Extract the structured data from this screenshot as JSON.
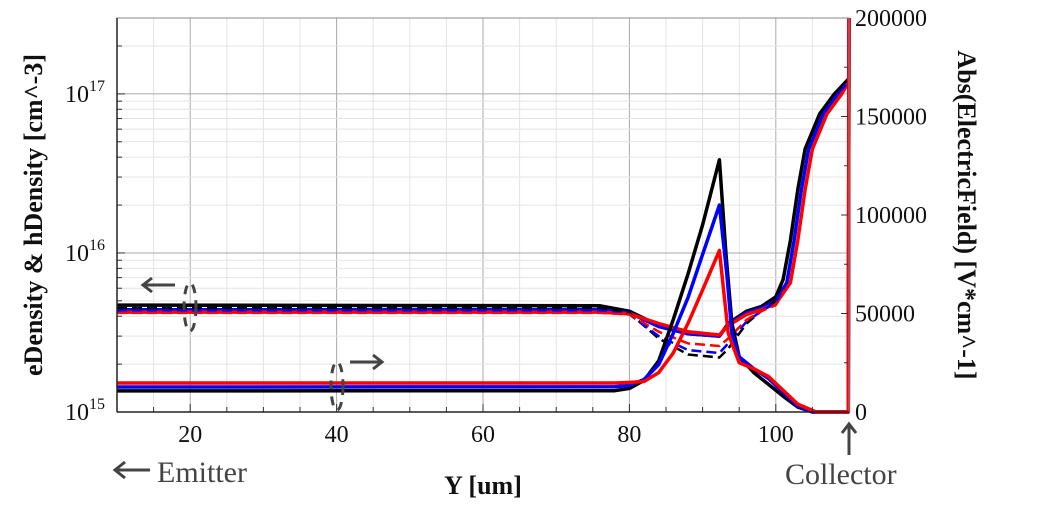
{
  "chart_data": {
    "type": "line",
    "xlabel": "Y [um]",
    "ylabel_left": "eDensity & hDensity [cm^-3]",
    "ylabel_right": "Abs(ElectricField) [V*cm^-1]",
    "xlim": [
      10,
      110
    ],
    "ylim_left": [
      1000000000000000.0,
      3e+17
    ],
    "left_scale": "log",
    "ylim_right": [
      0,
      200000
    ],
    "grid": true,
    "x_ticks": [
      "20",
      "40",
      "60",
      "80",
      "100"
    ],
    "left_ticks": [
      {
        "base": "10",
        "exp": "15",
        "value": 1000000000000000.0
      },
      {
        "base": "10",
        "exp": "16",
        "value": 1e+16
      },
      {
        "base": "10",
        "exp": "17",
        "value": 1e+17
      }
    ],
    "right_ticks": [
      "0",
      "50000",
      "100000",
      "150000",
      "200000"
    ],
    "colors": {
      "black": "#000000",
      "blue": "#0000ff",
      "red": "#ff0000"
    },
    "series": [
      {
        "axis": "left",
        "style": "solid",
        "color": "#000000",
        "points": [
          [
            10,
            4700000000000000.0
          ],
          [
            76,
            4650000000000000.0
          ],
          [
            80,
            4300000000000000.0
          ],
          [
            84,
            3500000000000000.0
          ],
          [
            88,
            3100000000000000.0
          ],
          [
            92.3,
            3000000000000000.0
          ],
          [
            93.5,
            3600000000000000.0
          ],
          [
            96,
            4300000000000000.0
          ],
          [
            98,
            4600000000000000.0
          ],
          [
            100,
            5300000000000000.0
          ],
          [
            101,
            6800000000000000.0
          ],
          [
            102,
            1.2e+16
          ],
          [
            103,
            2.5e+16
          ],
          [
            104,
            4.5e+16
          ],
          [
            106,
            7.5e+16
          ],
          [
            108,
            1e+17
          ],
          [
            110,
            1.25e+17
          ]
        ]
      },
      {
        "axis": "left",
        "style": "solid",
        "color": "#0000ff",
        "points": [
          [
            10,
            4400000000000000.0
          ],
          [
            76,
            4400000000000000.0
          ],
          [
            80,
            4200000000000000.0
          ],
          [
            84,
            3450000000000000.0
          ],
          [
            88,
            3100000000000000.0
          ],
          [
            92.3,
            3000000000000000.0
          ],
          [
            93.5,
            3550000000000000.0
          ],
          [
            96,
            4200000000000000.0
          ],
          [
            98,
            4500000000000000.0
          ],
          [
            100,
            5000000000000000.0
          ],
          [
            101.5,
            6500000000000000.0
          ],
          [
            102.5,
            1.2e+16
          ],
          [
            103.5,
            2.5e+16
          ],
          [
            104.5,
            4.5e+16
          ],
          [
            106.5,
            7.5e+16
          ],
          [
            108.5,
            1e+17
          ],
          [
            110,
            1.2e+17
          ]
        ]
      },
      {
        "axis": "left",
        "style": "solid",
        "color": "#ff0000",
        "points": [
          [
            10,
            4250000000000000.0
          ],
          [
            76,
            4250000000000000.0
          ],
          [
            80,
            4150000000000000.0
          ],
          [
            84,
            3600000000000000.0
          ],
          [
            88,
            3200000000000000.0
          ],
          [
            92.3,
            3050000000000000.0
          ],
          [
            93.5,
            3500000000000000.0
          ],
          [
            96,
            4100000000000000.0
          ],
          [
            98,
            4400000000000000.0
          ],
          [
            100,
            4800000000000000.0
          ],
          [
            102,
            6500000000000000.0
          ],
          [
            103,
            1.2e+16
          ],
          [
            104,
            2.5e+16
          ],
          [
            105,
            4.5e+16
          ],
          [
            107,
            7.5e+16
          ],
          [
            109,
            1e+17
          ],
          [
            110,
            1.2e+17
          ]
        ]
      },
      {
        "axis": "left",
        "style": "dashed",
        "color": "#000000",
        "points": [
          [
            10,
            4500000000000000.0
          ],
          [
            76,
            4500000000000000.0
          ],
          [
            80,
            4200000000000000.0
          ],
          [
            84,
            2900000000000000.0
          ],
          [
            88,
            2300000000000000.0
          ],
          [
            92.3,
            2200000000000000.0
          ],
          [
            93.5,
            2500000000000000.0
          ],
          [
            96,
            3600000000000000.0
          ],
          [
            98,
            4300000000000000.0
          ],
          [
            100,
            5000000000000000.0
          ],
          [
            101,
            6800000000000000.0
          ],
          [
            102,
            1.2e+16
          ],
          [
            103,
            2.5e+16
          ],
          [
            104,
            4.5e+16
          ],
          [
            106,
            7.5e+16
          ],
          [
            108,
            1e+17
          ],
          [
            110,
            1.25e+17
          ]
        ]
      },
      {
        "axis": "left",
        "style": "dashed",
        "color": "#0000ff",
        "points": [
          [
            10,
            4350000000000000.0
          ],
          [
            76,
            4350000000000000.0
          ],
          [
            80,
            4100000000000000.0
          ],
          [
            84,
            3000000000000000.0
          ],
          [
            88,
            2450000000000000.0
          ],
          [
            92.3,
            2350000000000000.0
          ],
          [
            93.5,
            2700000000000000.0
          ],
          [
            96,
            3700000000000000.0
          ],
          [
            98,
            4300000000000000.0
          ],
          [
            100,
            4900000000000000.0
          ],
          [
            101.5,
            6500000000000000.0
          ],
          [
            102.5,
            1.2e+16
          ],
          [
            103.5,
            2.5e+16
          ],
          [
            104.5,
            4.5e+16
          ],
          [
            106.5,
            7.5e+16
          ],
          [
            108.5,
            1e+17
          ],
          [
            110,
            1.2e+17
          ]
        ]
      },
      {
        "axis": "left",
        "style": "dashed",
        "color": "#ff0000",
        "points": [
          [
            10,
            4200000000000000.0
          ],
          [
            76,
            4200000000000000.0
          ],
          [
            80,
            4100000000000000.0
          ],
          [
            84,
            3200000000000000.0
          ],
          [
            88,
            2700000000000000.0
          ],
          [
            92.3,
            2600000000000000.0
          ],
          [
            93.5,
            2900000000000000.0
          ],
          [
            96,
            3800000000000000.0
          ],
          [
            98,
            4300000000000000.0
          ],
          [
            100,
            4700000000000000.0
          ],
          [
            102,
            6500000000000000.0
          ],
          [
            103,
            1.2e+16
          ],
          [
            104,
            2.5e+16
          ],
          [
            105,
            4.5e+16
          ],
          [
            107,
            7.5e+16
          ],
          [
            109,
            1e+17
          ],
          [
            110,
            1.2e+17
          ]
        ]
      },
      {
        "axis": "right",
        "style": "solid",
        "color": "#000000",
        "points": [
          [
            10,
            10700
          ],
          [
            78,
            10800
          ],
          [
            80,
            12000
          ],
          [
            82,
            16000
          ],
          [
            84,
            26000
          ],
          [
            86,
            47000
          ],
          [
            88,
            70000
          ],
          [
            90,
            95000
          ],
          [
            92.3,
            128000
          ],
          [
            93.2,
            80000
          ],
          [
            94,
            45000
          ],
          [
            95,
            28000
          ],
          [
            97,
            20000
          ],
          [
            99,
            14000
          ],
          [
            101,
            8000
          ],
          [
            103,
            2500
          ],
          [
            105,
            0
          ],
          [
            109.9,
            0
          ],
          [
            110,
            200000
          ]
        ]
      },
      {
        "axis": "right",
        "style": "solid",
        "color": "#0000ff",
        "points": [
          [
            10,
            12700
          ],
          [
            78,
            12800
          ],
          [
            80,
            13500
          ],
          [
            82,
            16500
          ],
          [
            84,
            24000
          ],
          [
            86,
            40000
          ],
          [
            88,
            58000
          ],
          [
            90,
            80000
          ],
          [
            92.3,
            105000
          ],
          [
            93.3,
            70000
          ],
          [
            94,
            40000
          ],
          [
            95,
            28000
          ],
          [
            97,
            22000
          ],
          [
            99,
            17000
          ],
          [
            101,
            10000
          ],
          [
            103,
            3000
          ],
          [
            105,
            0
          ],
          [
            109.9,
            0
          ],
          [
            110,
            200000
          ]
        ]
      },
      {
        "axis": "right",
        "style": "solid",
        "color": "#ff0000",
        "points": [
          [
            10,
            14700
          ],
          [
            78,
            14700
          ],
          [
            80,
            15000
          ],
          [
            82,
            15500
          ],
          [
            84,
            20000
          ],
          [
            86,
            30000
          ],
          [
            88,
            45000
          ],
          [
            90,
            62000
          ],
          [
            92.3,
            82000
          ],
          [
            93.5,
            40000
          ],
          [
            95,
            25000
          ],
          [
            97,
            22000
          ],
          [
            99,
            18000
          ],
          [
            101,
            11000
          ],
          [
            103,
            4000
          ],
          [
            105.5,
            0
          ],
          [
            109.9,
            0
          ],
          [
            110,
            200000
          ]
        ]
      }
    ]
  },
  "annotations": {
    "emitter": "Emitter",
    "collector": "Collector"
  }
}
